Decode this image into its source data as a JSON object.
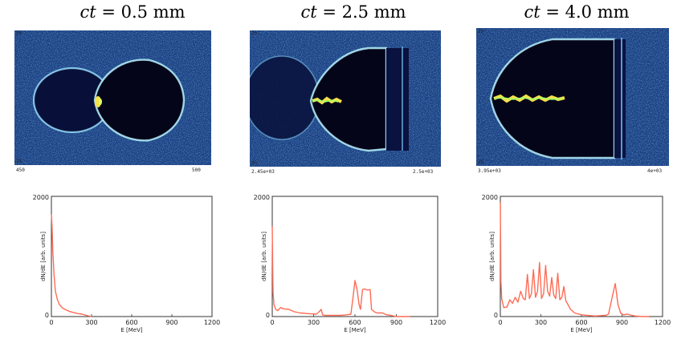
{
  "panels": [
    {
      "title_math": "ct",
      "title_value": " = 0.5 mm",
      "snapshot": {
        "corner_top": "25",
        "corner_bottom": "25",
        "x_min_label": "450",
        "x_max_label": "500"
      },
      "spectrum": {
        "ylabel": "dN/dE [arb. units]",
        "xlabel": "E [MeV]",
        "y_top_label": "2000",
        "y_zero_label": "0",
        "xticks": [
          "0",
          "300",
          "600",
          "900",
          "1200"
        ]
      }
    },
    {
      "title_math": "ct",
      "title_value": " = 2.5 mm",
      "snapshot": {
        "corner_top": "25",
        "corner_bottom": "25",
        "x_min_label": "2.45e+03",
        "x_max_label": "2.5e+03"
      },
      "spectrum": {
        "ylabel": "dN/dE [arb. units]",
        "xlabel": "E [MeV]",
        "y_top_label": "2000",
        "y_zero_label": "0",
        "xticks": [
          "0",
          "300",
          "600",
          "900",
          "1200"
        ]
      }
    },
    {
      "title_math": "ct",
      "title_value": " = 4.0 mm",
      "snapshot": {
        "corner_top": "25",
        "corner_bottom": "25",
        "x_min_label": "3.95e+03",
        "x_max_label": "4e+03"
      },
      "spectrum": {
        "ylabel": "dN/dE [arb. units]",
        "xlabel": "E [MeV]",
        "y_top_label": "2000",
        "y_zero_label": "0",
        "xticks": [
          "0",
          "300",
          "600",
          "900",
          "1200"
        ]
      }
    }
  ],
  "colors": {
    "spectrum_line": "#ff6b55",
    "density_background": "#1a3f82",
    "bubble_interior": "#05051a",
    "electron_bunch": "#f4e14a"
  },
  "chart_data": [
    {
      "type": "line",
      "xlabel": "E [MeV]",
      "ylabel": "dN/dE [arb. units]",
      "xlim": [
        0,
        1200
      ],
      "ylim": [
        0,
        2000
      ],
      "x": [
        0,
        5,
        10,
        20,
        30,
        45,
        60,
        80,
        100,
        130,
        160,
        200,
        230,
        260,
        300
      ],
      "values": [
        1700,
        1500,
        1100,
        700,
        420,
        280,
        200,
        150,
        120,
        90,
        70,
        50,
        40,
        20,
        0
      ]
    },
    {
      "type": "line",
      "xlabel": "E [MeV]",
      "ylabel": "dN/dE [arb. units]",
      "xlim": [
        0,
        1200
      ],
      "ylim": [
        0,
        2000
      ],
      "x": [
        0,
        3,
        6,
        12,
        25,
        40,
        60,
        80,
        120,
        160,
        200,
        260,
        320,
        340,
        355,
        365,
        380,
        420,
        460,
        500,
        540,
        570,
        585,
        600,
        615,
        630,
        640,
        655,
        670,
        690,
        710,
        720,
        740,
        760,
        800,
        830,
        860,
        880,
        900,
        1000
      ],
      "values": [
        1500,
        900,
        400,
        200,
        120,
        100,
        150,
        130,
        120,
        80,
        60,
        50,
        40,
        80,
        120,
        30,
        20,
        20,
        20,
        20,
        30,
        40,
        300,
        600,
        450,
        200,
        120,
        450,
        460,
        440,
        450,
        120,
        80,
        60,
        60,
        30,
        20,
        10,
        0,
        0
      ]
    },
    {
      "type": "line",
      "xlabel": "E [MeV]",
      "ylabel": "dN/dE [arb. units]",
      "xlim": [
        0,
        1200
      ],
      "ylim": [
        0,
        2000
      ],
      "x": [
        0,
        4,
        10,
        25,
        50,
        70,
        90,
        110,
        130,
        150,
        170,
        185,
        200,
        215,
        230,
        245,
        260,
        275,
        290,
        305,
        320,
        335,
        350,
        365,
        380,
        395,
        410,
        425,
        440,
        455,
        470,
        485,
        500,
        520,
        550,
        600,
        700,
        780,
        800,
        830,
        850,
        870,
        890,
        910,
        940,
        970,
        1000,
        1050,
        1100
      ],
      "values": [
        1900,
        600,
        300,
        150,
        160,
        280,
        220,
        320,
        240,
        420,
        300,
        280,
        700,
        300,
        380,
        780,
        320,
        420,
        900,
        300,
        380,
        850,
        420,
        340,
        650,
        360,
        300,
        720,
        280,
        320,
        500,
        260,
        200,
        120,
        60,
        30,
        10,
        20,
        40,
        350,
        550,
        200,
        60,
        30,
        40,
        20,
        10,
        0,
        0
      ]
    }
  ]
}
